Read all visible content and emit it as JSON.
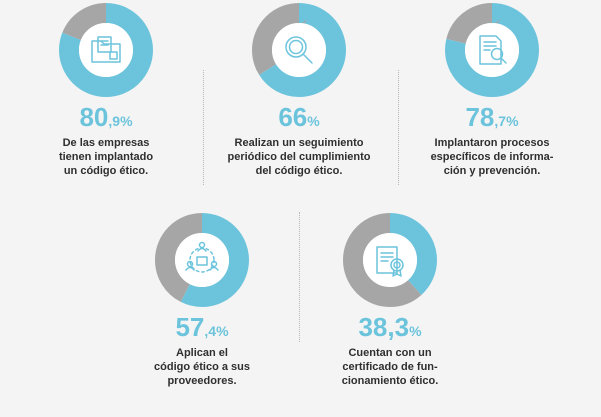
{
  "colors": {
    "primary": "#6cc4dc",
    "secondary": "#a6a6a6",
    "text": "#2f2f2f",
    "background": "#f4f4f4"
  },
  "chart_data": [
    {
      "type": "pie",
      "categories": [
        "",
        ""
      ],
      "values": [
        80.9,
        19.1
      ],
      "value_main": "80",
      "value_suffix": ",9%",
      "description": [
        "De las empresas",
        "tienen implantado",
        "un código ético."
      ],
      "icon": "folder-document-icon"
    },
    {
      "type": "pie",
      "categories": [
        "",
        ""
      ],
      "values": [
        66,
        34
      ],
      "value_main": "66",
      "value_suffix": "%",
      "description": [
        "Realizan un seguimiento",
        "periódico del cumplimiento",
        "del código ético."
      ],
      "icon": "magnifier-icon"
    },
    {
      "type": "pie",
      "categories": [
        "",
        ""
      ],
      "values": [
        78.7,
        21.3
      ],
      "value_main": "78",
      "value_suffix": ",7%",
      "description": [
        "Implantaron procesos",
        "específicos de informa-",
        "ción y prevención."
      ],
      "icon": "document-search-icon"
    },
    {
      "type": "pie",
      "categories": [
        "",
        ""
      ],
      "values": [
        57.4,
        42.6
      ],
      "value_main": "57",
      "value_suffix": ",4%",
      "description": [
        "Aplican el",
        "código ético a sus",
        "proveedores."
      ],
      "icon": "supplier-network-icon"
    },
    {
      "type": "pie",
      "categories": [
        "",
        ""
      ],
      "values": [
        38.3,
        61.7
      ],
      "value_main": "38,3",
      "value_suffix": "%",
      "description": [
        "Cuentan con un",
        "certificado de fun-",
        "cionamiento ético."
      ],
      "icon": "certificate-icon"
    }
  ]
}
